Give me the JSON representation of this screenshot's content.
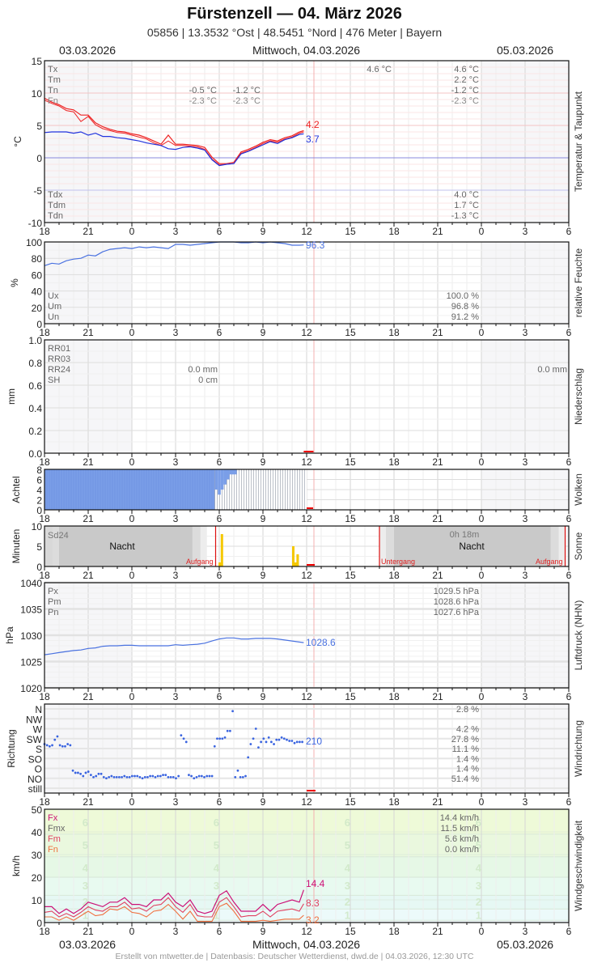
{
  "header": {
    "title": "Fürstenzell  —  04. März 2026",
    "subtitle": "05856  |  13.3532 °Ost  |  48.5451 °Nord  |  476 Meter  |  Bayern",
    "date_left": "03.03.2026",
    "date_center": "Mittwoch, 04.03.2026",
    "date_right": "05.03.2026"
  },
  "footer": {
    "text": "Erstellt von mtwetter.de | Datenbasis: Deutscher Wetterdienst, dwd.de | 04.03.2026, 12:30 UTC"
  },
  "x_axis": {
    "ticks": [
      "18",
      "21",
      "0",
      "3",
      "6",
      "9",
      "12",
      "15",
      "18",
      "21",
      "0",
      "3",
      "6"
    ],
    "hours_span": 36,
    "now_hour_offset": 18.5
  },
  "colors": {
    "temp": "#ee2222",
    "dewpoint": "#2233dd",
    "humidity": "#4a72e0",
    "pressure": "#4a72e0",
    "clouds": "#7a9ee8",
    "sun": "#f5c800",
    "now_line": "#f4b0b0",
    "sunrise_line": "#dd1111",
    "wind_fx": "#cc1177",
    "wind_fm": "#e04060",
    "wind_fn": "#f07040"
  },
  "chart_data": [
    {
      "id": "temperature",
      "type": "line",
      "title": "Temperatur & Taupunkt",
      "ylabel": "°C",
      "ylim": [
        -10,
        15
      ],
      "yticks": [
        "15",
        "10",
        "5",
        "0",
        "-5",
        "-10"
      ],
      "legend_left": [
        "Tx",
        "Tm",
        "Tn",
        "Tdx",
        "Tdm",
        "Tdn"
      ],
      "fn_label": "Fn",
      "stats_mid": {
        "col1": [
          "-0.5 °C",
          "-2.3 °C"
        ],
        "col2": [
          "-1.2 °C",
          "-2.3 °C"
        ]
      },
      "stats_day2_top": "4.6 °C",
      "stats_right": [
        "4.6 °C",
        "2.2 °C",
        "-1.2 °C",
        "-2.3 °C"
      ],
      "stats_right_dew": [
        "4.0 °C",
        "1.7 °C",
        "-1.3 °C"
      ],
      "last_temp": "4.2",
      "last_dew": "3.7",
      "x": [
        0,
        0.5,
        1,
        1.5,
        2,
        2.5,
        3,
        3.5,
        4,
        4.5,
        5,
        5.5,
        6,
        6.5,
        7,
        7.5,
        8,
        8.5,
        9,
        9.5,
        10,
        10.5,
        11,
        11.5,
        12,
        12.5,
        13,
        13.5,
        14,
        14.5,
        15,
        15.5,
        16,
        16.5,
        17,
        17.5,
        17.8
      ],
      "series": [
        {
          "name": "T",
          "values": [
            9.2,
            8.6,
            8.2,
            7.6,
            7.4,
            6.6,
            6.6,
            5.4,
            4.8,
            4.4,
            4.1,
            4.0,
            3.7,
            3.5,
            3.1,
            2.6,
            2.1,
            3.5,
            2.1,
            2.1,
            2.0,
            1.9,
            1.6,
            0.1,
            -0.9,
            -0.9,
            -0.7,
            0.9,
            1.3,
            1.8,
            2.4,
            2.8,
            2.6,
            3.1,
            3.4,
            4.0,
            4.2
          ]
        },
        {
          "name": "T2",
          "values": [
            8.9,
            8.4,
            8.0,
            7.3,
            7.1,
            5.6,
            6.4,
            5.1,
            4.5,
            4.2,
            3.9,
            3.8,
            3.5,
            3.2,
            2.9,
            2.3,
            1.9,
            2.6,
            1.9,
            1.9,
            1.8,
            1.7,
            1.3,
            -0.2,
            -1.1,
            -1.0,
            -0.9,
            0.7,
            1.1,
            1.6,
            2.2,
            2.6,
            2.4,
            2.9,
            3.2,
            3.8,
            4.0
          ]
        },
        {
          "name": "Td",
          "values": [
            3.9,
            4.0,
            4.0,
            4.0,
            3.8,
            4.0,
            3.5,
            3.8,
            3.3,
            3.3,
            3.1,
            3.0,
            2.8,
            2.6,
            2.3,
            2.1,
            1.9,
            1.4,
            1.3,
            1.6,
            1.7,
            1.5,
            1.2,
            -0.3,
            -1.2,
            -1.0,
            -0.9,
            0.6,
            1.0,
            1.5,
            2.0,
            2.5,
            2.2,
            2.8,
            3.1,
            3.6,
            3.7
          ]
        }
      ]
    },
    {
      "id": "humidity",
      "type": "line",
      "title": "relative Feuchte",
      "ylabel": "%",
      "ylim": [
        0,
        100
      ],
      "yticks": [
        "100",
        "80",
        "60",
        "40",
        "20",
        "0"
      ],
      "legend_left": [
        "Ux",
        "Um",
        "Un"
      ],
      "stats_right": [
        "100.0 %",
        "96.8 %",
        "91.2 %"
      ],
      "last_value": "96.3",
      "x": [
        0,
        0.5,
        1,
        1.5,
        2,
        2.5,
        3,
        3.5,
        4,
        4.5,
        5,
        5.5,
        6,
        6.5,
        7,
        7.5,
        8,
        8.5,
        9,
        9.5,
        10,
        10.5,
        11,
        11.5,
        12,
        12.5,
        13,
        13.5,
        14,
        14.5,
        15,
        15.5,
        16,
        16.5,
        17,
        17.5,
        17.8
      ],
      "series": [
        {
          "name": "U",
          "values": [
            71,
            74,
            73,
            77,
            79,
            80,
            84,
            83,
            88,
            91,
            92,
            93,
            92,
            94,
            93,
            94,
            93,
            92,
            97,
            97,
            96,
            97,
            98,
            99,
            100,
            100,
            100,
            99,
            99,
            100,
            99,
            100,
            99,
            98,
            96,
            96,
            96.3
          ]
        }
      ]
    },
    {
      "id": "precipitation",
      "type": "bar",
      "title": "Niederschlag",
      "ylabel": "mm",
      "ylim": [
        0,
        1.0
      ],
      "yticks": [
        "1.0",
        "0.8",
        "0.6",
        "0.4",
        "0.2",
        "0.0"
      ],
      "legend_left": [
        "RR01",
        "RR03",
        "RR24",
        "SH"
      ],
      "stats_mid": [
        "0.0 mm",
        "0 cm"
      ],
      "stats_right": "0.0 mm",
      "values": []
    },
    {
      "id": "clouds",
      "type": "bar",
      "title": "Wolken",
      "ylabel": "Achtel",
      "ylim": [
        0,
        8
      ],
      "yticks": [
        "8",
        "6",
        "4",
        "2",
        "0"
      ],
      "full_until_hour": 11.7,
      "steps": [
        [
          11.7,
          4
        ],
        [
          11.9,
          3
        ],
        [
          12.1,
          4
        ],
        [
          12.3,
          5
        ],
        [
          12.5,
          6
        ],
        [
          12.7,
          7
        ],
        [
          13.2,
          8
        ]
      ],
      "grey_until_hour": 18.0
    },
    {
      "id": "sunshine",
      "type": "bar",
      "title": "Sonne",
      "ylabel": "Minuten",
      "ylim": [
        0,
        10
      ],
      "yticks": [
        "10",
        "5",
        "0"
      ],
      "legend_left": "Sd24",
      "night_label": "Nacht",
      "sunrise_label": "Aufgang",
      "sunset_label": "Untergang",
      "day2_total": "0h 18m",
      "sunrise1_hour": 11.75,
      "sunset_hour": 23.0,
      "sunrise2_hour": 35.75,
      "bars": [
        [
          11.95,
          1
        ],
        [
          12.1,
          8
        ],
        [
          17.0,
          5
        ],
        [
          17.15,
          1
        ],
        [
          17.3,
          3
        ]
      ]
    },
    {
      "id": "pressure",
      "type": "line",
      "title": "Luftdruck (NHN)",
      "ylabel": "hPa",
      "ylim": [
        1020,
        1040
      ],
      "yticks": [
        "1040",
        "1035",
        "1030",
        "1025",
        "1020"
      ],
      "legend_left": [
        "Px",
        "Pm",
        "Pn"
      ],
      "stats_right": [
        "1029.5 hPa",
        "1028.6 hPa",
        "1027.6 hPa"
      ],
      "last_value": "1028.6",
      "x": [
        0,
        0.5,
        1,
        1.5,
        2,
        2.5,
        3,
        3.5,
        4,
        4.5,
        5,
        5.5,
        6,
        6.5,
        7,
        7.5,
        8,
        8.5,
        9,
        9.5,
        10,
        10.5,
        11,
        11.5,
        12,
        12.5,
        13,
        13.5,
        14,
        14.5,
        15,
        15.5,
        16,
        16.5,
        17,
        17.5,
        17.8
      ],
      "series": [
        {
          "name": "P",
          "values": [
            1026.3,
            1026.5,
            1026.7,
            1026.9,
            1027.1,
            1027.2,
            1027.5,
            1027.6,
            1027.9,
            1028.0,
            1028.0,
            1028.1,
            1028.1,
            1028.0,
            1028.0,
            1028.0,
            1028.0,
            1028.0,
            1028.2,
            1028.1,
            1028.2,
            1028.3,
            1028.5,
            1028.9,
            1029.3,
            1029.5,
            1029.5,
            1029.3,
            1029.3,
            1029.4,
            1029.4,
            1029.4,
            1029.3,
            1029.1,
            1028.9,
            1028.7,
            1028.6
          ]
        }
      ]
    },
    {
      "id": "wind_direction",
      "type": "scatter",
      "title": "Windrichtung",
      "ylabel": "Richtung",
      "categories": [
        "N",
        "NW",
        "W",
        "SW",
        "S",
        "SO",
        "O",
        "NO",
        "still"
      ],
      "stats_right": [
        "2.8 %",
        "",
        "4.2 %",
        "27.8 %",
        "11.1 %",
        "1.4 %",
        "1.4 %",
        "51.4 %",
        ""
      ],
      "last_value": "210",
      "points": [
        [
          0,
          200
        ],
        [
          0.3,
          195
        ],
        [
          0.6,
          190
        ],
        [
          0.9,
          195
        ],
        [
          1.2,
          220
        ],
        [
          1.5,
          235
        ],
        [
          1.8,
          195
        ],
        [
          2.1,
          190
        ],
        [
          2.4,
          190
        ],
        [
          2.7,
          200
        ],
        [
          3.0,
          195
        ],
        [
          3.3,
          80
        ],
        [
          3.6,
          70
        ],
        [
          3.9,
          70
        ],
        [
          4.2,
          65
        ],
        [
          4.5,
          55
        ],
        [
          4.8,
          70
        ],
        [
          5.1,
          75
        ],
        [
          5.4,
          60
        ],
        [
          5.7,
          50
        ],
        [
          6.0,
          55
        ],
        [
          6.3,
          65
        ],
        [
          6.6,
          65
        ],
        [
          6.9,
          50
        ],
        [
          7.2,
          45
        ],
        [
          7.5,
          50
        ],
        [
          7.8,
          55
        ],
        [
          8.1,
          50
        ],
        [
          8.4,
          50
        ],
        [
          8.7,
          50
        ],
        [
          9.0,
          50
        ],
        [
          9.3,
          55
        ],
        [
          9.6,
          50
        ],
        [
          9.9,
          50
        ],
        [
          10.2,
          55
        ],
        [
          10.5,
          55
        ],
        [
          10.8,
          55
        ],
        [
          11.1,
          50
        ],
        [
          11.4,
          45
        ],
        [
          11.7,
          50
        ],
        [
          12.0,
          50
        ],
        [
          12.3,
          55
        ],
        [
          12.6,
          55
        ],
        [
          12.9,
          50
        ],
        [
          13.2,
          55
        ],
        [
          13.5,
          55
        ],
        [
          13.8,
          60
        ],
        [
          14.1,
          60
        ],
        [
          14.4,
          50
        ],
        [
          14.7,
          50
        ],
        [
          15.0,
          50
        ],
        [
          15.3,
          45
        ],
        [
          15.6,
          55
        ],
        [
          15.9,
          240
        ],
        [
          16.2,
          225
        ],
        [
          16.5,
          210
        ],
        [
          16.8,
          60
        ],
        [
          17.1,
          55
        ],
        [
          17.4,
          40
        ],
        [
          17.7,
          50
        ],
        [
          18.0,
          55
        ],
        [
          18.3,
          55
        ],
        [
          18.6,
          50
        ],
        [
          18.9,
          55
        ],
        [
          19.2,
          55
        ],
        [
          19.5,
          55
        ],
        [
          19.8,
          190
        ],
        [
          20.1,
          225
        ],
        [
          20.4,
          225
        ],
        [
          20.7,
          225
        ],
        [
          21.0,
          230
        ],
        [
          21.3,
          260
        ],
        [
          21.6,
          260
        ],
        [
          21.9,
          350
        ],
        [
          22.2,
          50
        ],
        [
          22.5,
          80
        ],
        [
          22.8,
          50
        ],
        [
          23.1,
          50
        ],
        [
          23.4,
          55
        ],
        [
          23.7,
          140
        ],
        [
          24.0,
          200
        ],
        [
          24.3,
          225
        ],
        [
          24.6,
          270
        ],
        [
          24.9,
          185
        ],
        [
          25.2,
          210
        ],
        [
          25.5,
          225
        ],
        [
          25.8,
          210
        ],
        [
          26.1,
          230
        ],
        [
          26.4,
          210
        ],
        [
          26.7,
          200
        ],
        [
          27.0,
          220
        ],
        [
          27.3,
          220
        ],
        [
          27.6,
          230
        ],
        [
          27.9,
          225
        ],
        [
          28.2,
          220
        ],
        [
          28.5,
          215
        ],
        [
          28.8,
          215
        ],
        [
          29.1,
          205
        ],
        [
          29.4,
          210
        ],
        [
          29.7,
          210
        ],
        [
          30.0,
          210
        ]
      ]
    },
    {
      "id": "wind_speed",
      "type": "line",
      "title": "Windgeschwindigkeit",
      "ylabel": "km/h",
      "ylim": [
        0,
        50
      ],
      "yticks": [
        "50",
        "40",
        "30",
        "20",
        "10",
        "0"
      ],
      "legend_left": [
        "Fx",
        "Fmx",
        "Fm",
        "Fn"
      ],
      "stats_right": [
        "14.4 km/h",
        "11.5 km/h",
        "5.6 km/h",
        "0.0 km/h"
      ],
      "beaufort_labels": [
        "6",
        "5",
        "4",
        "3",
        "2",
        "1"
      ],
      "beaufort_y": [
        44,
        34,
        24,
        16,
        9,
        3
      ],
      "last_fx": "14.4",
      "last_fm": "8.3",
      "last_fn": "3.2",
      "x": [
        0,
        0.5,
        1,
        1.5,
        2,
        2.5,
        3,
        3.5,
        4,
        4.5,
        5,
        5.5,
        6,
        6.5,
        7,
        7.5,
        8,
        8.5,
        9,
        9.5,
        10,
        10.5,
        11,
        11.5,
        12,
        12.5,
        13,
        13.5,
        14,
        14.5,
        15,
        15.5,
        16,
        16.5,
        17,
        17.5,
        17.8
      ],
      "series": [
        {
          "name": "Fx",
          "values": [
            7,
            7,
            4,
            6,
            4,
            6,
            9,
            8,
            7,
            9,
            9,
            11,
            8,
            8,
            7,
            10,
            10,
            13,
            9,
            7,
            10,
            5,
            4,
            5,
            12,
            14,
            9,
            5,
            5,
            5,
            8,
            5,
            8,
            9,
            10,
            9,
            14.4
          ]
        },
        {
          "name": "Fm",
          "values": [
            4.5,
            5,
            2.5,
            4,
            2.5,
            4.5,
            7,
            5.5,
            5,
            7,
            7,
            9,
            6,
            6.5,
            5,
            7.5,
            8,
            11,
            7,
            4.5,
            8,
            3,
            2.5,
            2.5,
            9,
            11,
            7,
            2.5,
            3,
            3,
            5,
            2.5,
            5,
            5.5,
            6,
            5,
            8.3
          ]
        },
        {
          "name": "Fn",
          "values": [
            2.5,
            2.5,
            1,
            2.5,
            1,
            3,
            5,
            3,
            3.5,
            6,
            5.5,
            7,
            4.5,
            4,
            2.5,
            5,
            5.5,
            8,
            5,
            1.5,
            5,
            0.5,
            0.5,
            0.5,
            7,
            8.5,
            5,
            0.5,
            0.5,
            0.5,
            1,
            0.5,
            1,
            1.5,
            1.5,
            1.5,
            3.2
          ]
        }
      ]
    }
  ]
}
